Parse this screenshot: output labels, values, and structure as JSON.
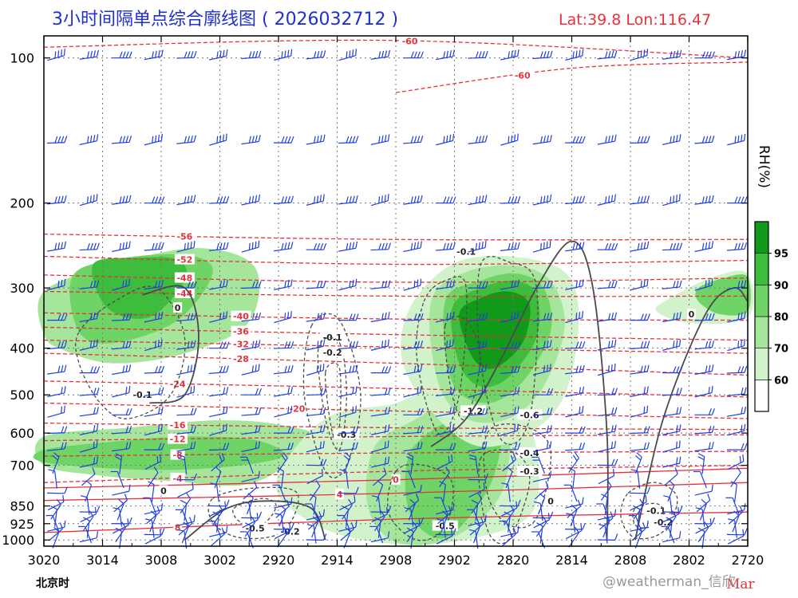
{
  "chart_data": {
    "type": "contour",
    "title": "3小时间隔单点综合廓线图 ( 2026032712 )",
    "location": "Lat:39.8  Lon:116.47",
    "x_title": "北京时",
    "x_ticks": [
      "3020",
      "3014",
      "3008",
      "3002",
      "2920",
      "2914",
      "2908",
      "2902",
      "2820",
      "2814",
      "2808",
      "2802",
      "2720"
    ],
    "x_month": "Mar",
    "y_ticks": [
      100,
      200,
      300,
      400,
      500,
      600,
      700,
      850,
      925,
      1000
    ],
    "y_scale": "pressure (hPa), reversed",
    "colorbar": {
      "label": "RH(%)",
      "ticks": [
        60,
        70,
        80,
        90,
        95
      ],
      "colors": [
        "#ffffff",
        "#d2f2cc",
        "#a6e59c",
        "#6fd466",
        "#3dbd3b",
        "#119a19"
      ]
    },
    "rh_areas": [
      {
        "level": 70,
        "x": [
          0.0,
          0.1,
          0.22,
          0.3,
          0.29,
          0.2,
          0.1,
          0.03,
          0.0
        ],
        "p": [
          305,
          268,
          248,
          272,
          355,
          410,
          430,
          405,
          375
        ]
      },
      {
        "level": 80,
        "x": [
          0.04,
          0.1,
          0.2,
          0.24,
          0.19,
          0.1,
          0.05
        ],
        "p": [
          285,
          262,
          256,
          278,
          350,
          390,
          370
        ]
      },
      {
        "level": 90,
        "x": [
          0.07,
          0.13,
          0.19,
          0.2,
          0.15,
          0.09
        ],
        "p": [
          268,
          260,
          262,
          290,
          345,
          330
        ]
      },
      {
        "level": 70,
        "x": [
          0.0,
          0.12,
          0.24,
          0.33,
          0.4,
          0.34,
          0.28,
          0.18,
          0.08,
          0.0
        ],
        "p": [
          610,
          585,
          565,
          575,
          620,
          710,
          770,
          755,
          735,
          700
        ]
      },
      {
        "level": 80,
        "x": [
          0.0,
          0.1,
          0.2,
          0.3,
          0.34,
          0.26,
          0.14,
          0.0
        ],
        "p": [
          650,
          625,
          610,
          620,
          670,
          705,
          715,
          690
        ]
      },
      {
        "level": 60,
        "x": [
          0.4,
          0.5,
          0.56,
          0.62,
          0.67,
          0.7,
          0.69,
          0.58,
          0.47,
          0.38,
          0.33
        ],
        "p": [
          560,
          520,
          470,
          450,
          520,
          650,
          890,
          1010,
          1010,
          920,
          760
        ]
      },
      {
        "level": 70,
        "x": [
          0.47,
          0.53,
          0.58,
          0.62,
          0.66,
          0.65,
          0.58,
          0.5,
          0.46
        ],
        "p": [
          640,
          560,
          510,
          500,
          560,
          800,
          990,
          1010,
          850
        ]
      },
      {
        "level": 80,
        "x": [
          0.52,
          0.58,
          0.63,
          0.65,
          0.63,
          0.57,
          0.52
        ],
        "p": [
          660,
          560,
          530,
          610,
          790,
          990,
          880
        ]
      },
      {
        "level": 60,
        "x": [
          0.52,
          0.58,
          0.66,
          0.74,
          0.76,
          0.74,
          0.69,
          0.62,
          0.56,
          0.51
        ],
        "p": [
          330,
          268,
          258,
          278,
          350,
          500,
          600,
          640,
          560,
          430
        ]
      },
      {
        "level": 70,
        "x": [
          0.55,
          0.6,
          0.67,
          0.72,
          0.74,
          0.71,
          0.66,
          0.6,
          0.56
        ],
        "p": [
          320,
          278,
          270,
          290,
          360,
          480,
          560,
          560,
          470
        ]
      },
      {
        "level": 80,
        "x": [
          0.57,
          0.62,
          0.67,
          0.71,
          0.72,
          0.68,
          0.63,
          0.58
        ],
        "p": [
          320,
          290,
          280,
          300,
          370,
          470,
          520,
          470
        ]
      },
      {
        "level": 90,
        "x": [
          0.58,
          0.62,
          0.67,
          0.7,
          0.7,
          0.66,
          0.62,
          0.59
        ],
        "p": [
          330,
          300,
          290,
          310,
          380,
          460,
          480,
          430
        ]
      },
      {
        "level": 95,
        "x": [
          0.59,
          0.62,
          0.66,
          0.69,
          0.68,
          0.64,
          0.61
        ],
        "p": [
          340,
          315,
          305,
          325,
          390,
          440,
          420
        ]
      },
      {
        "level": 60,
        "x": [
          0.89,
          0.95,
          1.0,
          1.0,
          0.92,
          0.87
        ],
        "p": [
          315,
          285,
          280,
          345,
          355,
          335
        ]
      },
      {
        "level": 80,
        "x": [
          0.93,
          0.97,
          1.0,
          1.0,
          0.96,
          0.93
        ],
        "p": [
          300,
          285,
          285,
          335,
          340,
          320
        ]
      }
    ],
    "temperature_lines": [
      {
        "label": "-60",
        "x": [
          0.0,
          0.5,
          1.0
        ],
        "p": [
          95,
          92,
          100
        ],
        "lx": 0.52
      },
      {
        "label": "-60",
        "x": [
          0.5,
          0.75,
          1.0
        ],
        "p": [
          118,
          105,
          102
        ],
        "lx": 0.68
      },
      {
        "label": "-56",
        "x": [
          0.0,
          0.5,
          1.0
        ],
        "p": [
          232,
          238,
          238
        ],
        "lx": 0.2
      },
      {
        "label": "-52",
        "x": [
          0.0,
          0.5,
          1.0
        ],
        "p": [
          258,
          268,
          263
        ],
        "lx": 0.2
      },
      {
        "label": "-48",
        "x": [
          0.0,
          0.5,
          1.0
        ],
        "p": [
          282,
          292,
          286
        ],
        "lx": 0.2
      },
      {
        "label": "-44",
        "x": [
          0.0,
          0.5,
          1.0
        ],
        "p": [
          305,
          312,
          312
        ],
        "lx": 0.2
      },
      {
        "label": "-40",
        "x": [
          0.0,
          0.5,
          1.0
        ],
        "p": [
          338,
          348,
          350
        ],
        "lx": 0.28
      },
      {
        "label": "-36",
        "x": [
          0.0,
          0.5,
          1.0
        ],
        "p": [
          362,
          375,
          385
        ],
        "lx": 0.28
      },
      {
        "label": "-32",
        "x": [
          0.0,
          0.5,
          1.0
        ],
        "p": [
          385,
          398,
          410
        ],
        "lx": 0.28
      },
      {
        "label": "-28",
        "x": [
          0.0,
          0.5,
          1.0
        ],
        "p": [
          410,
          430,
          455
        ],
        "lx": 0.28
      },
      {
        "label": "-24",
        "x": [
          0.0,
          0.5,
          1.0
        ],
        "p": [
          468,
          485,
          505
        ],
        "lx": 0.19
      },
      {
        "label": "-20",
        "x": [
          0.0,
          0.5,
          1.0
        ],
        "p": [
          520,
          540,
          560
        ],
        "lx": 0.36
      },
      {
        "label": "-16",
        "x": [
          0.0,
          0.5,
          1.0
        ],
        "p": [
          572,
          585,
          590
        ],
        "lx": 0.19
      },
      {
        "label": "-12",
        "x": [
          0.0,
          0.5,
          1.0
        ],
        "p": [
          622,
          610,
          605
        ],
        "lx": 0.19
      },
      {
        "label": "-8",
        "x": [
          0.0,
          0.5,
          1.0
        ],
        "p": [
          670,
          660,
          655
        ],
        "lx": 0.19
      },
      {
        "label": "-4",
        "x": [
          0.0,
          0.5,
          1.0
        ],
        "p": [
          760,
          720,
          700
        ],
        "lx": 0.19
      },
      {
        "label": "0",
        "x": [
          0.0,
          0.5,
          1.0
        ],
        "p": [
          780,
          750,
          710
        ],
        "lx": 0.5
      },
      {
        "label": "4",
        "x": [
          0.0,
          0.5,
          1.0
        ],
        "p": [
          828,
          800,
          760
        ],
        "lx": 0.42
      },
      {
        "label": "8",
        "x": [
          0.0,
          0.5,
          1.0
        ],
        "p": [
          965,
          905,
          875
        ],
        "lx": 0.19
      }
    ],
    "vertical_motion": [
      {
        "label": "-0.1",
        "x": [
          0.05,
          0.1,
          0.16,
          0.2,
          0.18,
          0.12,
          0.08,
          0.05
        ],
        "p": [
          370,
          320,
          300,
          380,
          500,
          560,
          520,
          430
        ],
        "lx": 0.14,
        "lp": 500
      },
      {
        "label": "0",
        "x": [
          0.14,
          0.2,
          0.22,
          0.2,
          0.15
        ],
        "p": [
          310,
          300,
          380,
          500,
          520
        ],
        "lx": 0.19,
        "lp": 330
      },
      {
        "label": "-0.1",
        "x": [
          0.38,
          0.42,
          0.45,
          0.43,
          0.4,
          0.37
        ],
        "p": [
          360,
          350,
          500,
          700,
          720,
          500
        ],
        "lx": 0.41,
        "lp": 380
      },
      {
        "label": "-0.2",
        "x": [
          0.39,
          0.42,
          0.43,
          0.42,
          0.4
        ],
        "p": [
          400,
          390,
          500,
          650,
          560
        ],
        "lx": 0.41,
        "lp": 408
      },
      {
        "label": "-0.3",
        "x": [
          0.4,
          0.42,
          0.42,
          0.41
        ],
        "p": [
          450,
          440,
          580,
          600
        ],
        "lx": 0.43,
        "lp": 604
      },
      {
        "label": "-0.2",
        "x": [
          0.24,
          0.3,
          0.36,
          0.34,
          0.28,
          0.24
        ],
        "p": [
          820,
          780,
          800,
          960,
          990,
          920
        ],
        "lx": 0.35,
        "lp": 960
      },
      {
        "label": "-0.5",
        "x": [
          0.27,
          0.31,
          0.33,
          0.31,
          0.28
        ],
        "p": [
          860,
          820,
          850,
          930,
          920
        ],
        "lx": 0.3,
        "lp": 945
      },
      {
        "label": "-0.1",
        "x": [
          0.54,
          0.57,
          0.6,
          0.59,
          0.56,
          0.53
        ],
        "p": [
          320,
          290,
          300,
          500,
          600,
          420
        ],
        "lx": 0.6,
        "lp": 252
      },
      {
        "label": "-1.2",
        "x": [
          0.57,
          0.6,
          0.62,
          0.6,
          0.58
        ],
        "p": [
          360,
          350,
          420,
          560,
          500
        ],
        "lx": 0.61,
        "lp": 540
      },
      {
        "label": "-0.6",
        "x": [
          0.62,
          0.66,
          0.7,
          0.69,
          0.65,
          0.62
        ],
        "p": [
          270,
          265,
          300,
          560,
          620,
          420
        ],
        "lx": 0.69,
        "lp": 550
      },
      {
        "label": "-0.5",
        "x": [
          0.5,
          0.54,
          0.58,
          0.57,
          0.53,
          0.49
        ],
        "p": [
          720,
          700,
          760,
          940,
          1000,
          880
        ],
        "lx": 0.57,
        "lp": 935
      },
      {
        "label": "-0.4",
        "x": [
          0.63,
          0.68,
          0.72,
          0.7,
          0.66,
          0.63
        ],
        "p": [
          600,
          580,
          650,
          900,
          930,
          800
        ],
        "lx": 0.69,
        "lp": 660
      },
      {
        "label": "-0.3",
        "x": [
          0.62,
          0.67,
          0.69,
          0.66,
          0.63
        ],
        "p": [
          680,
          660,
          760,
          1000,
          950
        ],
        "lx": 0.69,
        "lp": 720
      },
      {
        "label": "-0.1",
        "x": [
          0.83,
          0.87,
          0.9,
          0.88,
          0.84,
          0.82
        ],
        "p": [
          800,
          760,
          820,
          960,
          990,
          900
        ],
        "lx": 0.87,
        "lp": 870
      },
      {
        "label": "-0.2",
        "x": [
          0.84,
          0.87,
          0.88,
          0.86,
          0.84
        ],
        "p": [
          860,
          840,
          880,
          940,
          930
        ],
        "lx": 0.88,
        "lp": 918
      },
      {
        "label": "0",
        "x": [
          0.55,
          0.6,
          0.65,
          0.7,
          0.75,
          0.78,
          0.8,
          0.8
        ],
        "p": [
          640,
          560,
          420,
          300,
          240,
          300,
          600,
          1000
        ],
        "lx": 0.72,
        "lp": 830
      },
      {
        "label": "0",
        "x": [
          0.2,
          0.26,
          0.32,
          0.38,
          0.4
        ],
        "p": [
          1000,
          860,
          830,
          860,
          1000
        ],
        "lx": 0.17,
        "lp": 790
      },
      {
        "label": "0",
        "x": [
          0.84,
          0.88,
          0.94,
          0.98,
          1.0
        ],
        "p": [
          1000,
          560,
          340,
          300,
          320
        ],
        "lx": 0.92,
        "lp": 340
      }
    ],
    "wind_barbs": {
      "rows": [
        100,
        150,
        200,
        250,
        300,
        350,
        400,
        450,
        500,
        550,
        600,
        650,
        700,
        750,
        800,
        850,
        875,
        900,
        925,
        950,
        975,
        1000
      ],
      "columns": 22
    }
  },
  "watermark": "@weatherman_信欣"
}
